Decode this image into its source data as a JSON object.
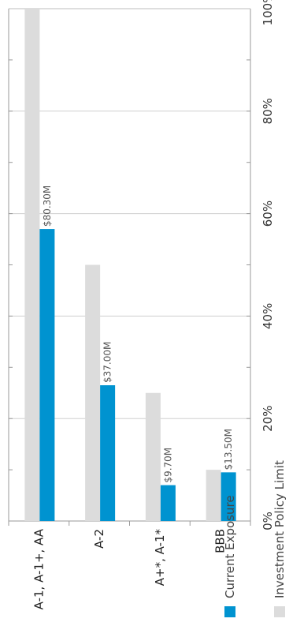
{
  "chart_data": {
    "type": "bar",
    "orientation": "horizontal",
    "categories": [
      "A-1, A-1+, AA",
      "A-2",
      "A+*, A-1*",
      "BBB"
    ],
    "series": [
      {
        "name": "Investment Policy Limit",
        "values": [
          100,
          50,
          25,
          10
        ],
        "color": "#dcdcdc"
      },
      {
        "name": "Current Exposure",
        "values": [
          57,
          26.5,
          7,
          9.5
        ],
        "color": "#0093d0",
        "data_labels": [
          "$80.30M",
          "$37.00M",
          "$9.70M",
          "$13.50M"
        ]
      }
    ],
    "value_axis": {
      "range": [
        0,
        100
      ],
      "ticks": [
        0,
        20,
        40,
        60,
        80,
        100
      ],
      "tick_labels": [
        "0%",
        "20%",
        "40%",
        "60%",
        "80%",
        "100%"
      ]
    },
    "gridlines": true,
    "legend": {
      "position": "bottom",
      "items": [
        "Current Exposure",
        "Investment Policy Limit"
      ]
    }
  }
}
